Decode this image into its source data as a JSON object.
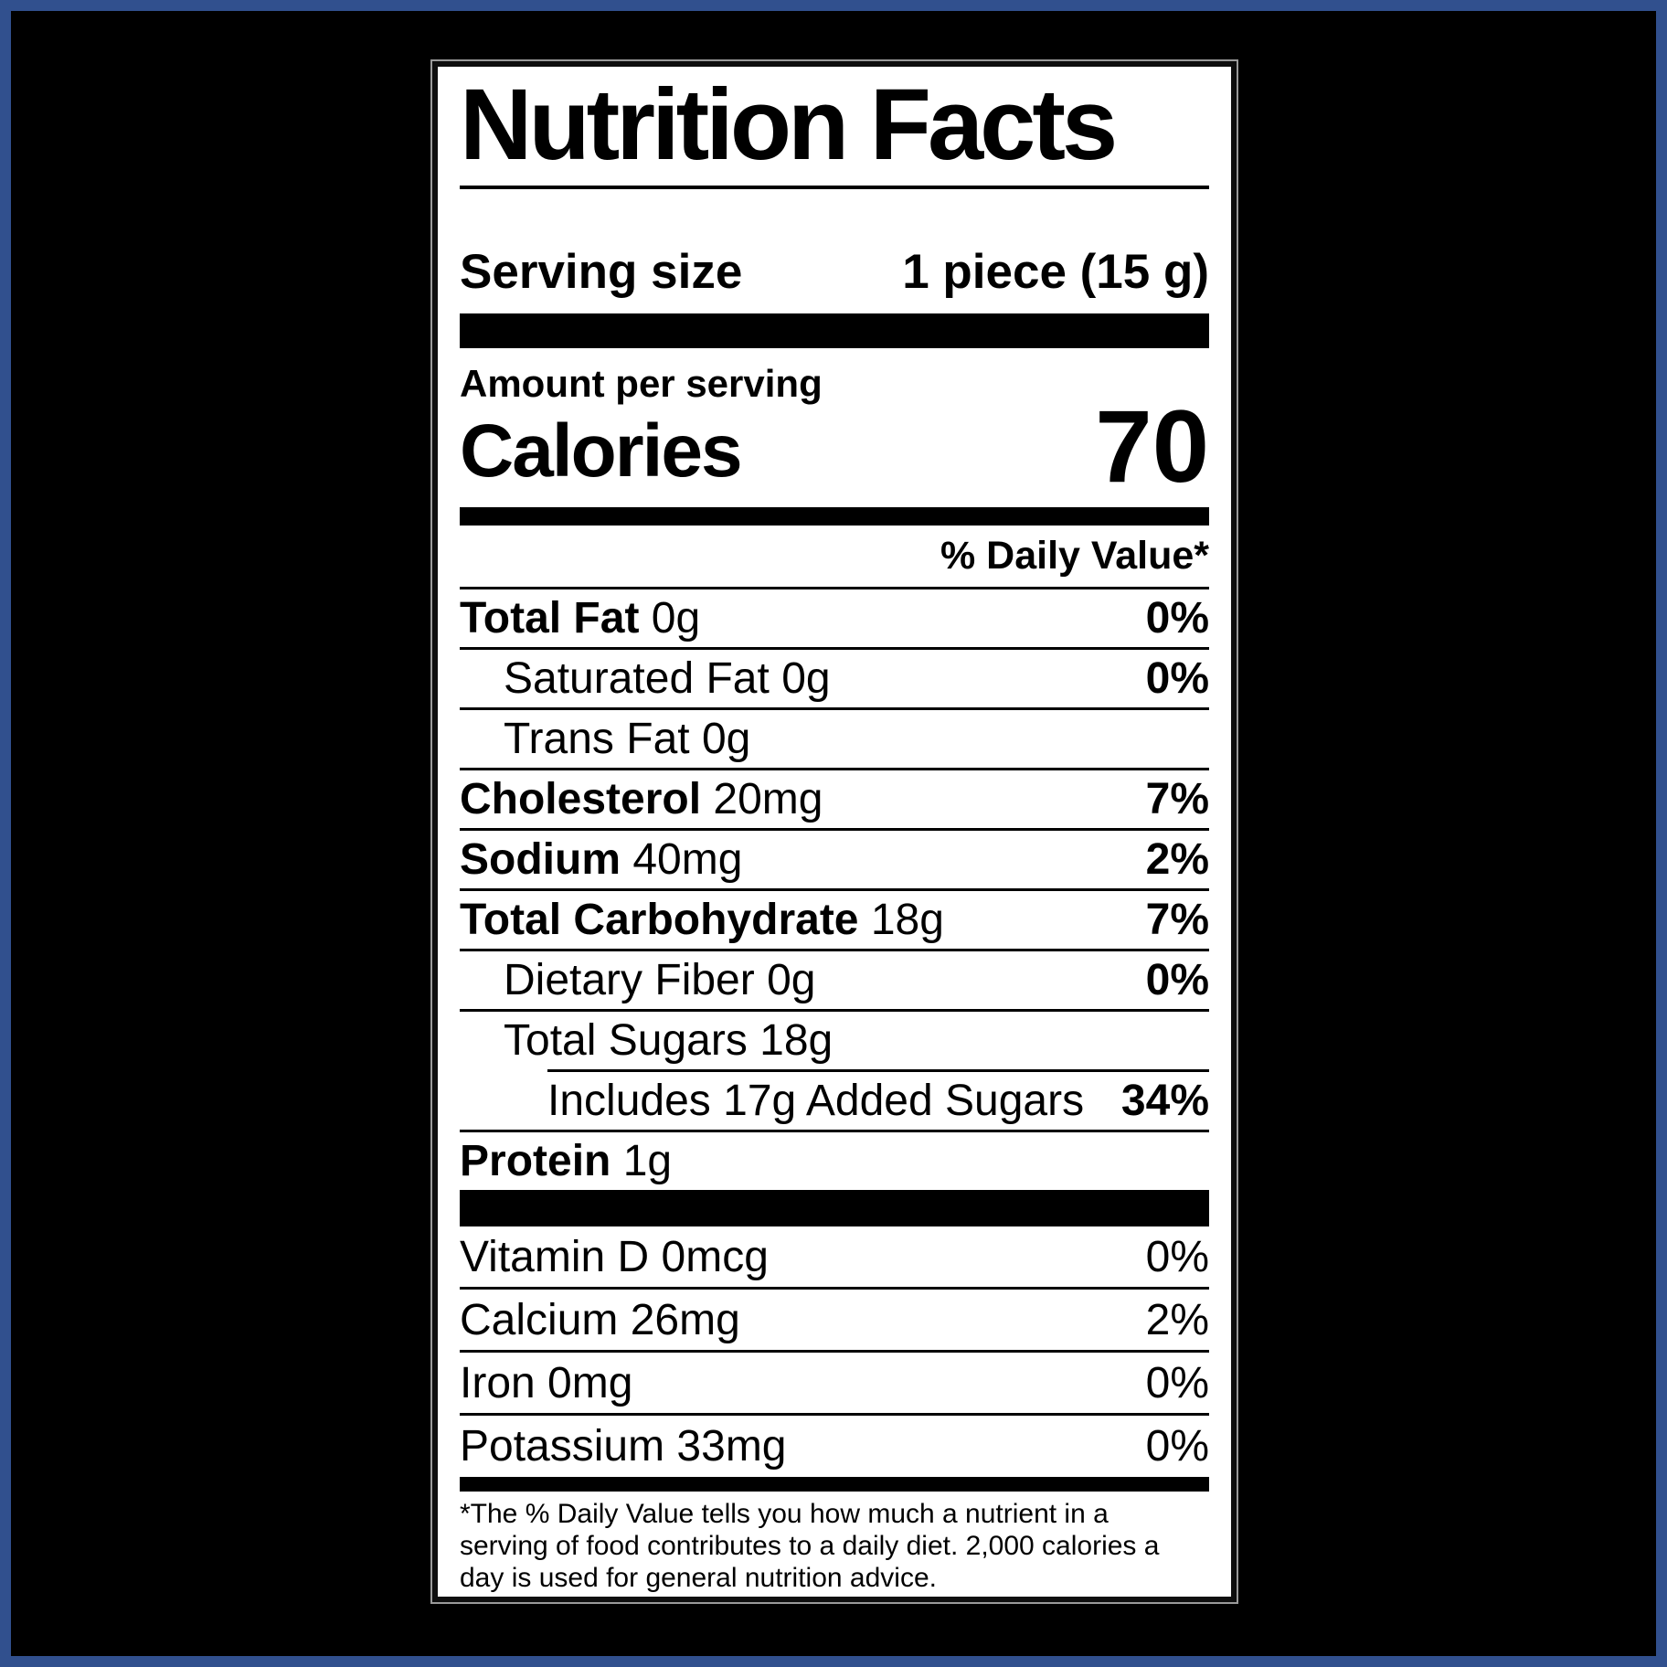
{
  "colors": {
    "frame_blue": "#31508e",
    "canvas_bg": "#000000",
    "label_bg": "#ffffff",
    "ink": "#000000"
  },
  "label": {
    "title": "Nutrition Facts",
    "serving": {
      "label": "Serving size",
      "value": "1 piece (15 g)"
    },
    "amount_per_serving": "Amount per serving",
    "calories_label": "Calories",
    "calories_value": "70",
    "daily_value_header": "% Daily Value*",
    "nutrient_rows": [
      {
        "name": "Total Fat",
        "amount": "0g",
        "percent": "0%",
        "indent": 0,
        "bold_name": true
      },
      {
        "name": "Saturated Fat",
        "amount": "0g",
        "percent": "0%",
        "indent": 1,
        "bold_name": false
      },
      {
        "name": "Trans Fat",
        "amount": "0g",
        "percent": "",
        "indent": 1,
        "bold_name": false
      },
      {
        "name": "Cholesterol",
        "amount": "20mg",
        "percent": "7%",
        "indent": 0,
        "bold_name": true
      },
      {
        "name": "Sodium",
        "amount": "40mg",
        "percent": "2%",
        "indent": 0,
        "bold_name": true
      },
      {
        "name": "Total Carbohydrate",
        "amount": "18g",
        "percent": "7%",
        "indent": 0,
        "bold_name": true
      },
      {
        "name": "Dietary Fiber",
        "amount": "0g",
        "percent": "0%",
        "indent": 1,
        "bold_name": false
      },
      {
        "name": "Total Sugars",
        "amount": "18g",
        "percent": "",
        "indent": 1,
        "bold_name": false
      },
      {
        "name": "Includes 17g Added Sugars",
        "amount": "",
        "percent": "34%",
        "indent": 2,
        "bold_name": false,
        "divider_indented": true
      },
      {
        "name": "Protein",
        "amount": "1g",
        "percent": "",
        "indent": 0,
        "bold_name": true
      }
    ],
    "micronutrient_rows": [
      {
        "name": "Vitamin D 0mcg",
        "percent": "0%"
      },
      {
        "name": "Calcium 26mg",
        "percent": "2%"
      },
      {
        "name": "Iron 0mg",
        "percent": "0%"
      },
      {
        "name": "Potassium 33mg",
        "percent": "0%"
      }
    ],
    "footnote": "*The % Daily Value tells you how much a nutrient in a serving of food contributes to a daily diet. 2,000 calories a day is used for general nutrition advice."
  }
}
